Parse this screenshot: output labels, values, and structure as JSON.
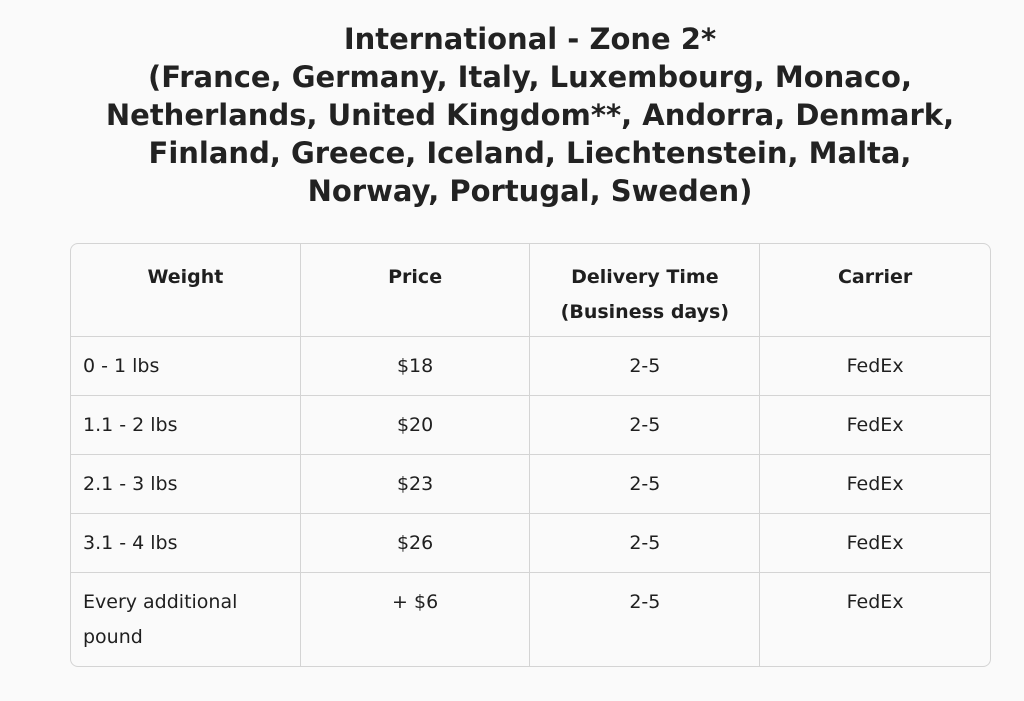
{
  "title": {
    "lines": [
      "International - Zone 2*",
      "(France, Germany, Italy, Luxembourg, Monaco,",
      "Netherlands, United Kingdom**, Andorra, Denmark,",
      "Finland, Greece, Iceland, Liechtenstein, Malta,",
      "Norway, Portugal, Sweden)"
    ]
  },
  "table": {
    "headers": [
      "Weight",
      "Price",
      "Delivery Time (Business days)",
      "Carrier"
    ],
    "rows": [
      [
        "0 - 1 lbs",
        "$18",
        "2-5",
        "FedEx"
      ],
      [
        "1.1 - 2 lbs",
        "$20",
        "2-5",
        "FedEx"
      ],
      [
        "2.1 - 3 lbs",
        "$23",
        "2-5",
        "FedEx"
      ],
      [
        "3.1 - 4 lbs",
        "$26",
        "2-5",
        "FedEx"
      ],
      [
        "Every additional pound",
        "+ $6",
        "2-5",
        "FedEx"
      ]
    ]
  }
}
